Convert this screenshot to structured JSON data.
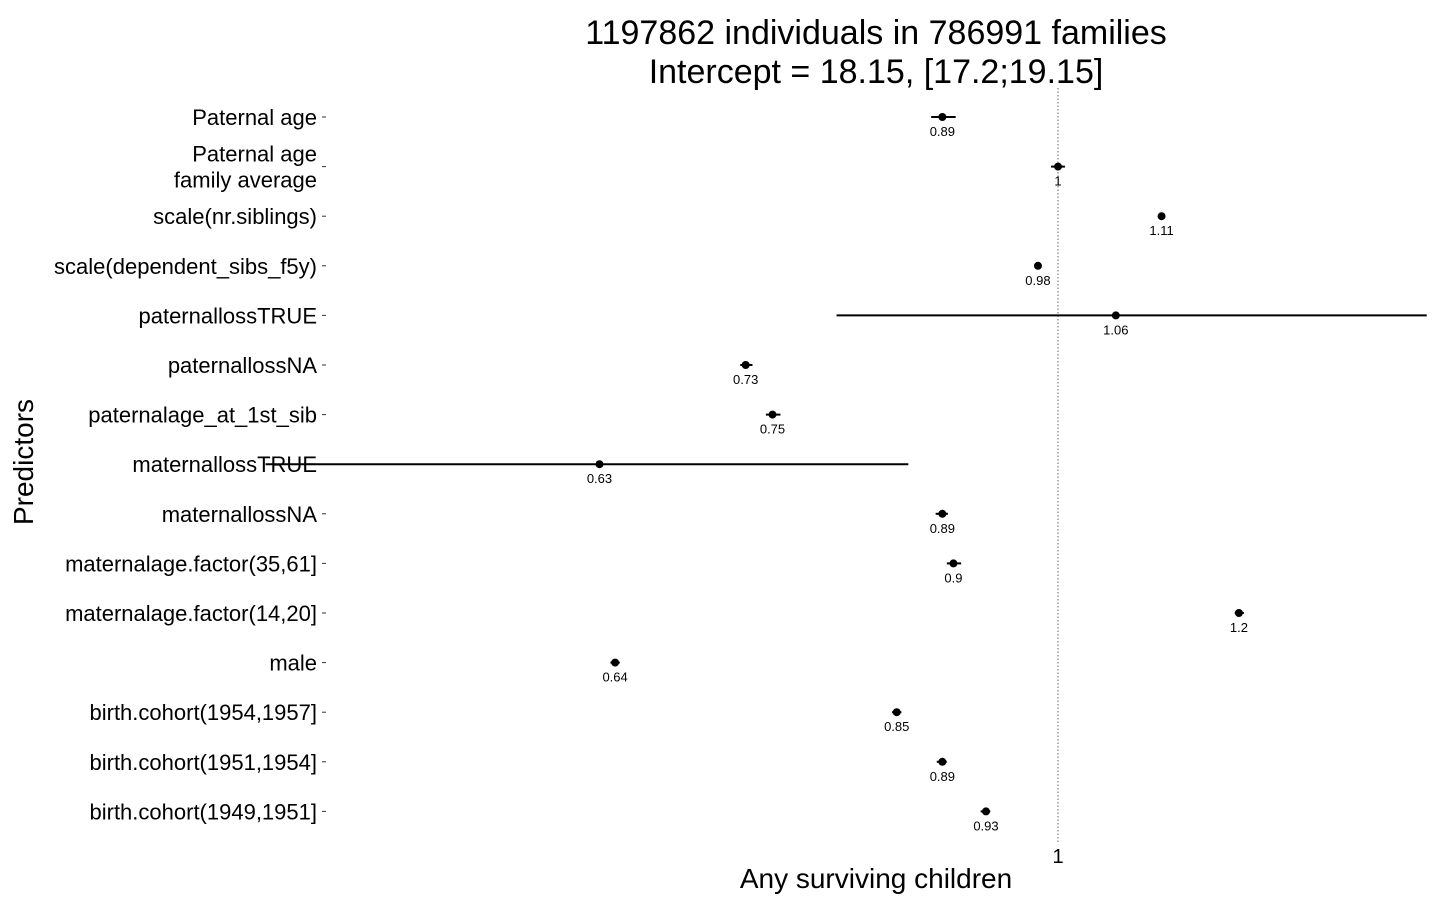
{
  "chart_data": {
    "type": "scatter",
    "title": {
      "line1": "1197862 individuals in 786991 families",
      "line2": "Intercept = 18.15, [17.2;19.15]"
    },
    "xlabel": "Any surviving children",
    "ylabel": "Predictors",
    "x_scale": "log",
    "reference_line": 1,
    "x_ticks": [
      {
        "value": 1,
        "label": "1"
      }
    ],
    "grid": false,
    "legend": "none",
    "colors": {
      "point": "#000000",
      "interval": "#000000",
      "reference_line": "#666666"
    },
    "predictors": [
      {
        "label": [
          "Paternal age"
        ],
        "estimate": 0.89,
        "ci": [
          0.88,
          0.902
        ],
        "estimate_label": "0.89"
      },
      {
        "label": [
          "Paternal age",
          "family average"
        ],
        "estimate": 1.0,
        "ci": [
          0.993,
          1.007
        ],
        "estimate_label": "1"
      },
      {
        "label": [
          "scale(nr.siblings)"
        ],
        "estimate": 1.11,
        "ci": [
          1.107,
          1.114
        ],
        "estimate_label": "1.11"
      },
      {
        "label": [
          "scale(dependent_sibs_f5y)"
        ],
        "estimate": 0.98,
        "ci": [
          0.977,
          0.983
        ],
        "estimate_label": "0.98"
      },
      {
        "label": [
          "paternallossTRUE"
        ],
        "estimate": 1.06,
        "ci": [
          0.8,
          1.45
        ],
        "estimate_label": "1.06"
      },
      {
        "label": [
          "paternallossNA"
        ],
        "estimate": 0.73,
        "ci": [
          0.726,
          0.735
        ],
        "estimate_label": "0.73"
      },
      {
        "label": [
          "paternalage_at_1st_sib"
        ],
        "estimate": 0.75,
        "ci": [
          0.745,
          0.756
        ],
        "estimate_label": "0.75"
      },
      {
        "label": [
          "maternallossTRUE"
        ],
        "estimate": 0.63,
        "ci": [
          0.45,
          0.86
        ],
        "estimate_label": "0.63"
      },
      {
        "label": [
          "maternallossNA"
        ],
        "estimate": 0.89,
        "ci": [
          0.884,
          0.895
        ],
        "estimate_label": "0.89"
      },
      {
        "label": [
          "maternalage.factor(35,61]"
        ],
        "estimate": 0.9,
        "ci": [
          0.894,
          0.907
        ],
        "estimate_label": "0.9"
      },
      {
        "label": [
          "maternalage.factor(14,20]"
        ],
        "estimate": 1.2,
        "ci": [
          1.195,
          1.206
        ],
        "estimate_label": "1.2"
      },
      {
        "label": [
          "male"
        ],
        "estimate": 0.64,
        "ci": [
          0.637,
          0.643
        ],
        "estimate_label": "0.64"
      },
      {
        "label": [
          "birth.cohort(1954,1957]"
        ],
        "estimate": 0.85,
        "ci": [
          0.846,
          0.854
        ],
        "estimate_label": "0.85"
      },
      {
        "label": [
          "birth.cohort(1951,1954]"
        ],
        "estimate": 0.89,
        "ci": [
          0.885,
          0.894
        ],
        "estimate_label": "0.89"
      },
      {
        "label": [
          "birth.cohort(1949,1951]"
        ],
        "estimate": 0.93,
        "ci": [
          0.925,
          0.934
        ],
        "estimate_label": "0.93"
      }
    ]
  }
}
